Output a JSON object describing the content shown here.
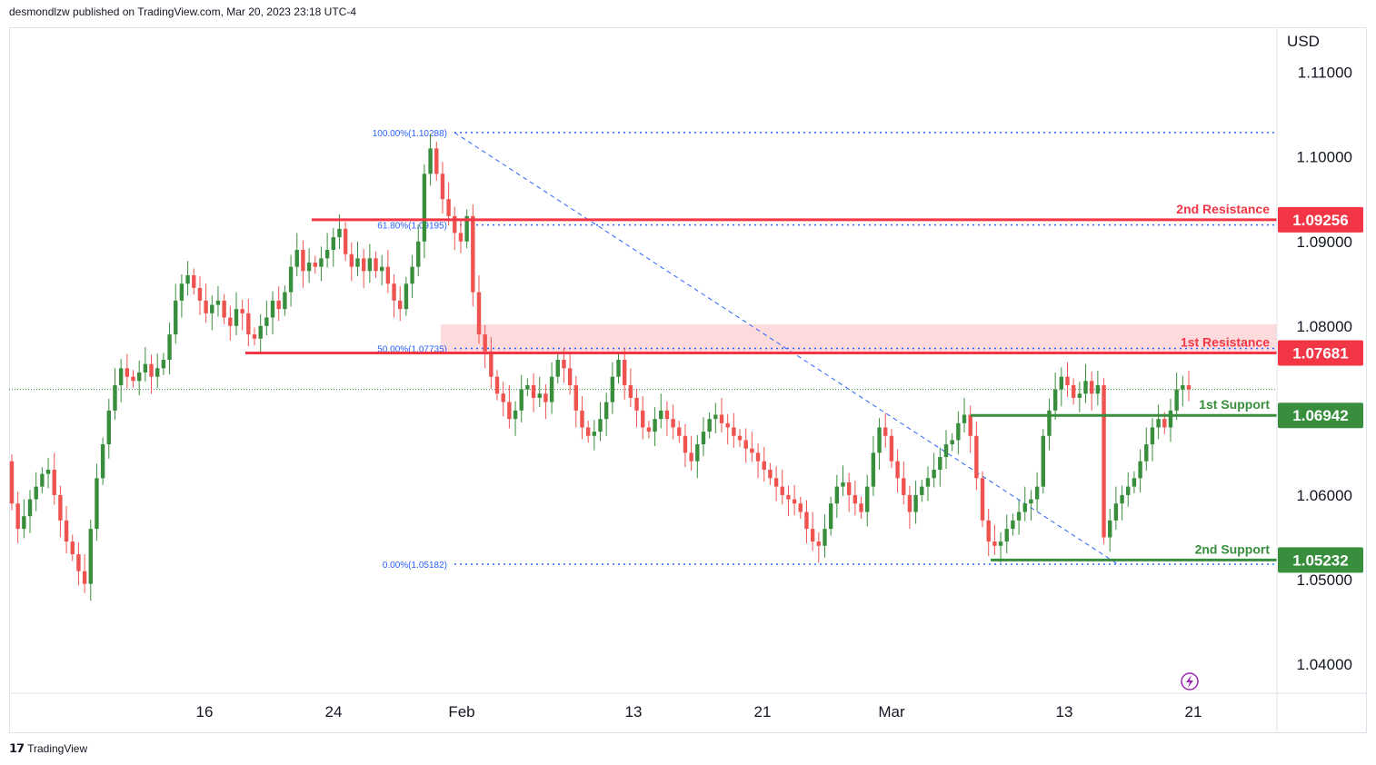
{
  "header": {
    "published": "desmondlzw published on TradingView.com, Mar 20, 2023 23:18 UTC-4"
  },
  "footer": {
    "brand": "TradingView",
    "logo_icon": "tradingview-logo-icon"
  },
  "colors": {
    "up": "#388e3c",
    "down": "#ef5350",
    "resistance": "#f23645",
    "support": "#388e3c",
    "fib": "#2962ff",
    "zone": "rgba(242,54,69,0.18)"
  },
  "chart_data": {
    "type": "candlestick",
    "currency_label": "USD",
    "ylim": [
      1.035,
      1.115
    ],
    "y_ticks": [
      "1.11000",
      "1.10000",
      "1.09000",
      "1.08000",
      "1.06000",
      "1.05000",
      "1.04000"
    ],
    "y_tick_values": [
      1.11,
      1.1,
      1.09,
      1.08,
      1.06,
      1.05,
      1.04
    ],
    "x_ticks": [
      "16",
      "24",
      "Feb",
      "13",
      "21",
      "Mar",
      "13",
      "21"
    ],
    "levels": [
      {
        "name": "2nd Resistance",
        "value": 1.09256,
        "label": "1.09256",
        "kind": "resistance"
      },
      {
        "name": "1st Resistance",
        "value": 1.07681,
        "label": "1.07681",
        "kind": "resistance"
      },
      {
        "name": "1st Support",
        "value": 1.06942,
        "label": "1.06942",
        "kind": "support"
      },
      {
        "name": "2nd Support",
        "value": 1.05232,
        "label": "1.05232",
        "kind": "support"
      }
    ],
    "fib_levels": [
      {
        "label": "100.00%(1.10288)",
        "value": 1.10288
      },
      {
        "label": "61.80%(1.09195)",
        "value": 1.09195
      },
      {
        "label": "50.00%(1.07735)",
        "value": 1.07735
      },
      {
        "label": "0.00%(1.05182)",
        "value": 1.05182
      }
    ],
    "resistance_zone": [
      1.0768,
      1.0802
    ],
    "last_price": 1.0725,
    "closes": [
      1.059,
      1.056,
      1.0575,
      1.0595,
      1.061,
      1.0625,
      1.063,
      1.06,
      1.057,
      1.0545,
      1.053,
      1.051,
      1.0495,
      1.056,
      1.062,
      1.066,
      1.07,
      1.073,
      1.075,
      1.074,
      1.0735,
      1.0745,
      1.0755,
      1.074,
      1.075,
      1.076,
      1.079,
      1.083,
      1.085,
      1.086,
      1.0845,
      1.083,
      1.0815,
      1.0825,
      1.083,
      1.081,
      1.08,
      1.082,
      1.0815,
      1.079,
      1.0785,
      1.08,
      1.081,
      1.083,
      1.082,
      1.084,
      1.087,
      1.089,
      1.0865,
      1.0875,
      1.087,
      1.088,
      1.089,
      1.0905,
      1.0915,
      1.0885,
      1.087,
      1.088,
      1.0865,
      1.088,
      1.0865,
      1.087,
      1.085,
      1.083,
      1.082,
      1.085,
      1.087,
      1.09,
      1.098,
      1.101,
      1.098,
      1.095,
      1.093,
      1.091,
      1.09,
      1.093,
      1.084,
      1.079,
      1.077,
      1.074,
      1.072,
      1.071,
      1.069,
      1.07,
      1.0725,
      1.073,
      1.0715,
      1.072,
      1.071,
      1.074,
      1.076,
      1.075,
      1.073,
      1.07,
      1.068,
      1.067,
      1.0675,
      1.069,
      1.071,
      1.074,
      1.076,
      1.073,
      1.0715,
      1.07,
      1.068,
      1.0675,
      1.069,
      1.07,
      1.069,
      1.068,
      1.067,
      1.065,
      1.064,
      1.066,
      1.0675,
      1.069,
      1.0695,
      1.0685,
      1.068,
      1.067,
      1.0665,
      1.0655,
      1.065,
      1.064,
      1.063,
      1.062,
      1.061,
      1.06,
      1.0595,
      1.059,
      1.058,
      1.056,
      1.0545,
      1.054,
      1.056,
      1.059,
      1.061,
      1.0615,
      1.06,
      1.059,
      1.058,
      1.061,
      1.065,
      1.068,
      1.067,
      1.064,
      1.062,
      1.06,
      1.058,
      1.06,
      1.061,
      1.062,
      1.063,
      1.0645,
      1.066,
      1.0665,
      1.0685,
      1.0695,
      1.067,
      1.062,
      1.057,
      1.0545,
      1.054,
      1.0545,
      1.056,
      1.057,
      1.058,
      1.059,
      1.0595,
      1.061,
      1.067,
      1.07,
      1.0725,
      1.074,
      1.073,
      1.0715,
      1.072,
      1.0735,
      1.072,
      1.073,
      1.055,
      1.057,
      1.059,
      1.06,
      1.061,
      1.062,
      1.064,
      1.066,
      1.068,
      1.069,
      1.068,
      1.07,
      1.0725,
      1.073,
      1.0725
    ]
  }
}
